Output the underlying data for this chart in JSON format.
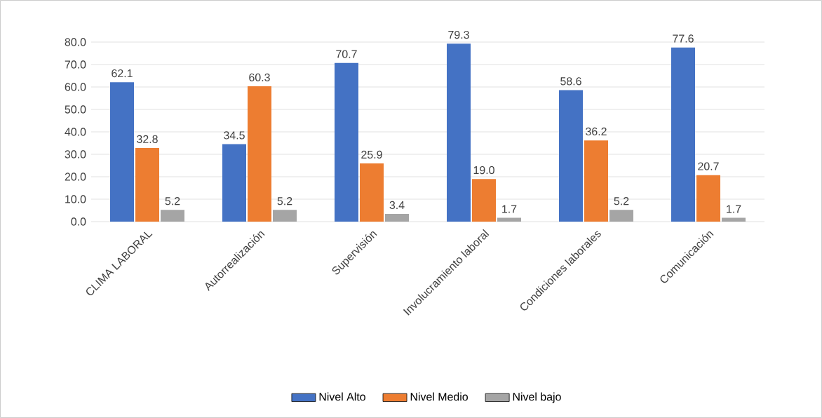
{
  "chart_data": {
    "type": "bar",
    "categories": [
      "CLIMA LABORAL",
      "Autorrealización",
      "Supervisión",
      "Involucramiento laboral",
      "Condiciones laborales",
      "Comunicación"
    ],
    "series": [
      {
        "name": "Nivel Alto",
        "color": "#4472c4",
        "values": [
          62.1,
          34.5,
          70.7,
          79.3,
          58.6,
          77.6
        ],
        "value_labels": [
          "62.1",
          "34.5",
          "70.7",
          "79.3",
          "58.6",
          "77.6"
        ]
      },
      {
        "name": "Nivel Medio",
        "color": "#ed7d31",
        "values": [
          32.8,
          60.3,
          25.9,
          19.0,
          36.2,
          20.7
        ],
        "value_labels": [
          "32.8",
          "60.3",
          "25.9",
          "19.0",
          "36.2",
          "20.7"
        ]
      },
      {
        "name": "Nivel bajo",
        "color": "#a5a5a5",
        "values": [
          5.2,
          5.2,
          3.4,
          1.7,
          5.2,
          1.7
        ],
        "value_labels": [
          "5.2",
          "5.2",
          "3.4",
          "1.7",
          "5.2",
          "1.7"
        ]
      }
    ],
    "ylim": [
      0,
      80
    ],
    "yticks": [
      {
        "value": 0,
        "label": "0.0"
      },
      {
        "value": 10,
        "label": "10.0"
      },
      {
        "value": 20,
        "label": "20.0"
      },
      {
        "value": 30,
        "label": "30.0"
      },
      {
        "value": 40,
        "label": "40.0"
      },
      {
        "value": 50,
        "label": "50.0"
      },
      {
        "value": 60,
        "label": "60.0"
      },
      {
        "value": 70,
        "label": "70.0"
      },
      {
        "value": 80,
        "label": "80.0"
      }
    ],
    "grid": "y",
    "legend": "bottom"
  }
}
